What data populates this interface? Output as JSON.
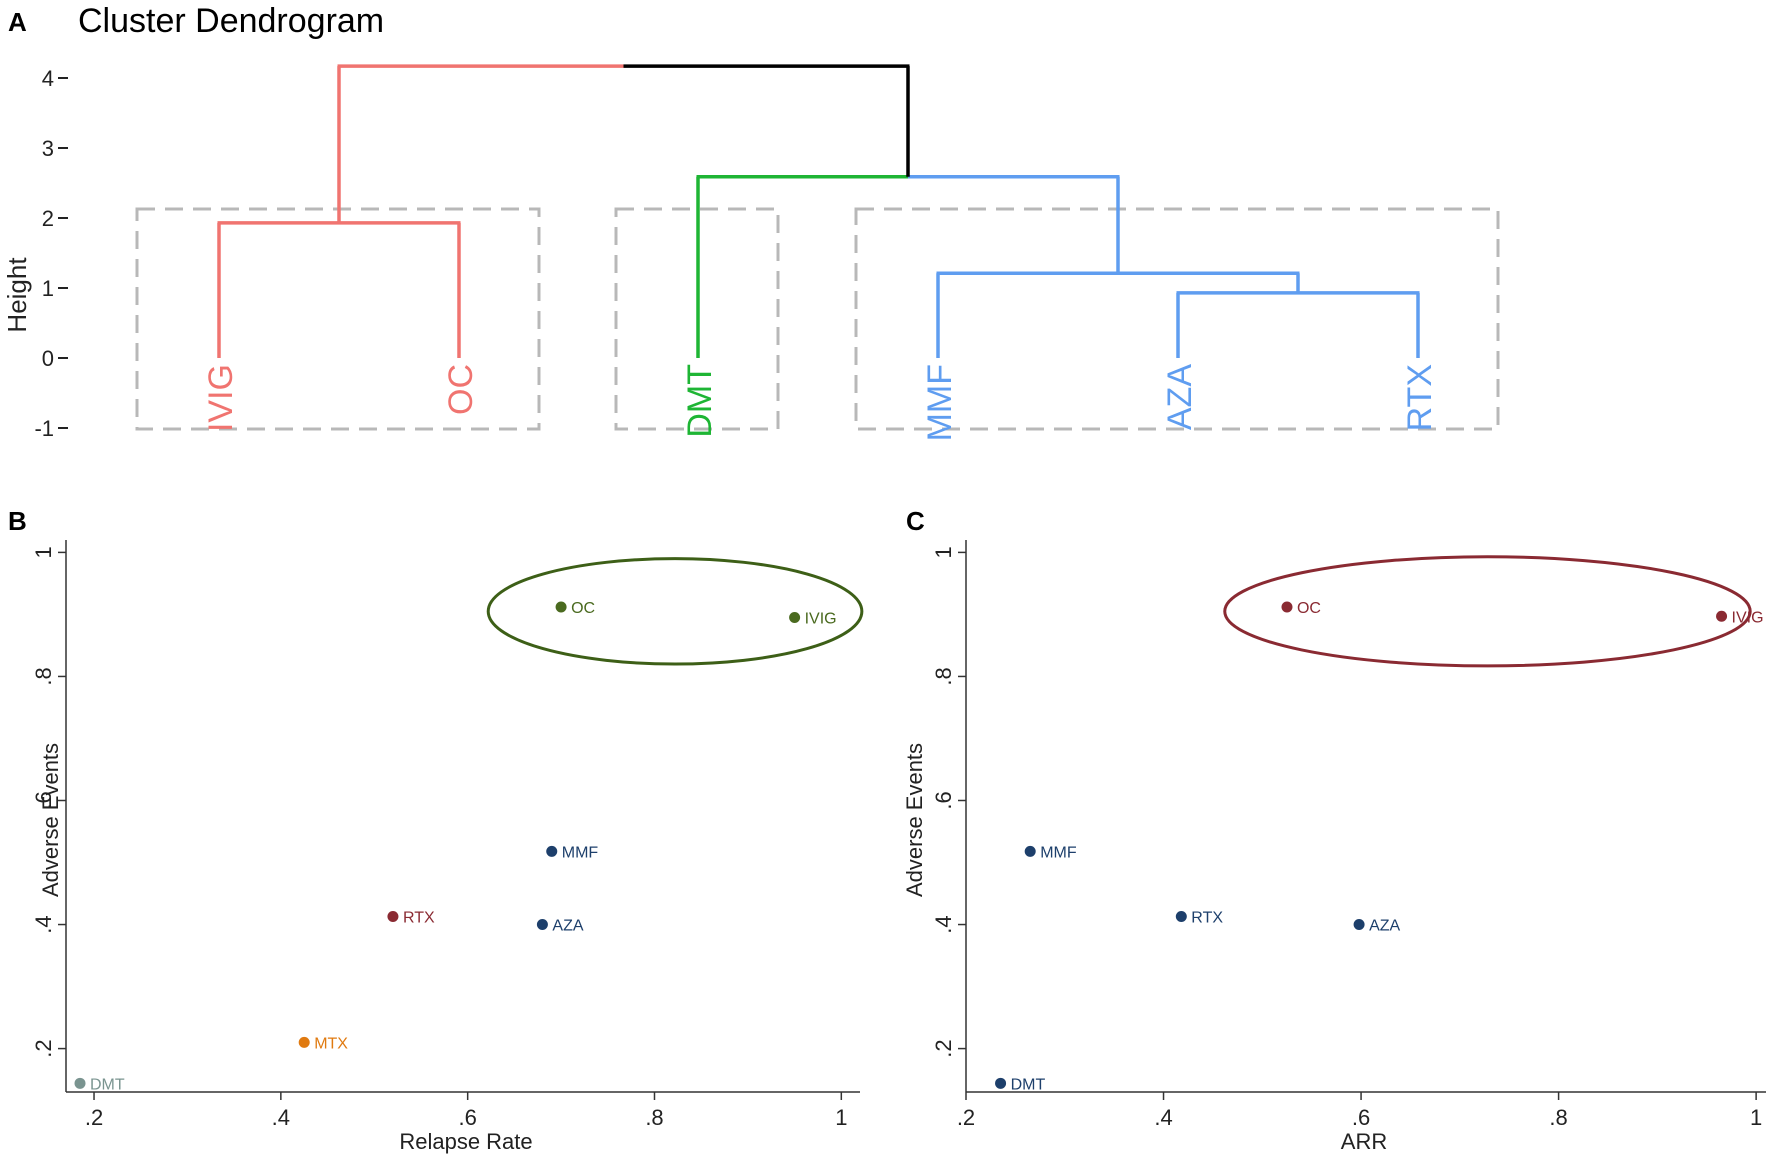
{
  "chart_data": [
    {
      "panel": "A",
      "type": "dendrogram",
      "title": "Cluster Dendrogram",
      "ylabel": "Height",
      "ylim": [
        -1,
        4.3
      ],
      "yticks": [
        4,
        3,
        2,
        1,
        0,
        -1
      ],
      "leaves": [
        {
          "name": "IVIG",
          "color": "#f07470"
        },
        {
          "name": "OC",
          "color": "#f07470"
        },
        {
          "name": "DMT",
          "color": "#1eb534"
        },
        {
          "name": "MMF",
          "color": "#5f9df0"
        },
        {
          "name": "AZA",
          "color": "#5f9df0"
        },
        {
          "name": "RTX",
          "color": "#5f9df0"
        }
      ],
      "merges": [
        {
          "left": "IVIG",
          "right": "OC",
          "height": 1.93,
          "color": "#f07470"
        },
        {
          "left": "AZA",
          "right": "RTX",
          "height": 0.93,
          "color": "#5f9df0"
        },
        {
          "left": "MMF",
          "right": "AZA+RTX",
          "height": 1.21,
          "color": "#5f9df0"
        },
        {
          "left": "DMT",
          "right": "MMF+AZA+RTX",
          "height": 2.59,
          "color_left": "#1eb534",
          "color_right": "#5f9df0"
        },
        {
          "left": "IVIG+OC",
          "right": "DMT+MMF+AZA+RTX",
          "height": 4.17,
          "color_left": "#f07470",
          "color_right": "#000000"
        }
      ],
      "cluster_boxes": [
        [
          "IVIG",
          "OC"
        ],
        [
          "DMT"
        ],
        [
          "MMF",
          "AZA",
          "RTX"
        ]
      ]
    },
    {
      "panel": "B",
      "type": "scatter",
      "xlabel": "Relapse Rate",
      "ylabel": "Adverse Events",
      "xlim": [
        0.17,
        1.02
      ],
      "ylim": [
        0.13,
        1.02
      ],
      "xticks": [
        ".2",
        ".4",
        ".6",
        ".8",
        "1"
      ],
      "yticks": [
        ".2",
        ".4",
        ".6",
        ".8",
        "1"
      ],
      "points": [
        {
          "label": "OC",
          "x": 0.7,
          "y": 0.912,
          "color": "#4a6a1f"
        },
        {
          "label": "IVIG",
          "x": 0.95,
          "y": 0.895,
          "color": "#4a6a1f"
        },
        {
          "label": "MMF",
          "x": 0.69,
          "y": 0.518,
          "color": "#1d3f6b"
        },
        {
          "label": "RTX",
          "x": 0.52,
          "y": 0.413,
          "color": "#8a2a32"
        },
        {
          "label": "AZA",
          "x": 0.68,
          "y": 0.4,
          "color": "#1d3f6b"
        },
        {
          "label": "MTX",
          "x": 0.425,
          "y": 0.21,
          "color": "#e07a10"
        },
        {
          "label": "DMT",
          "x": 0.185,
          "y": 0.144,
          "color": "#7a9490"
        }
      ],
      "ellipse": {
        "cx": 0.822,
        "cy": 0.905,
        "rx": 0.2,
        "ry": 0.085,
        "color": "#3d5f17"
      }
    },
    {
      "panel": "C",
      "type": "scatter",
      "xlabel": "ARR",
      "ylabel": "Adverse Events",
      "xlim": [
        0.2,
        1.01
      ],
      "ylim": [
        0.13,
        1.02
      ],
      "xticks": [
        ".2",
        ".4",
        ".6",
        ".8",
        "1"
      ],
      "yticks": [
        ".2",
        ".4",
        ".6",
        ".8",
        "1"
      ],
      "points": [
        {
          "label": "OC",
          "x": 0.525,
          "y": 0.912,
          "color": "#8a2a32"
        },
        {
          "label": "IVIG",
          "x": 0.965,
          "y": 0.897,
          "color": "#8a2a32"
        },
        {
          "label": "MMF",
          "x": 0.265,
          "y": 0.518,
          "color": "#1d3f6b"
        },
        {
          "label": "RTX",
          "x": 0.418,
          "y": 0.413,
          "color": "#1d3f6b"
        },
        {
          "label": "AZA",
          "x": 0.598,
          "y": 0.4,
          "color": "#1d3f6b"
        },
        {
          "label": "DMT",
          "x": 0.235,
          "y": 0.144,
          "color": "#1d3f6b"
        }
      ],
      "ellipse": {
        "cx": 0.728,
        "cy": 0.905,
        "rx": 0.266,
        "ry": 0.088,
        "color": "#8a2a32"
      }
    }
  ]
}
